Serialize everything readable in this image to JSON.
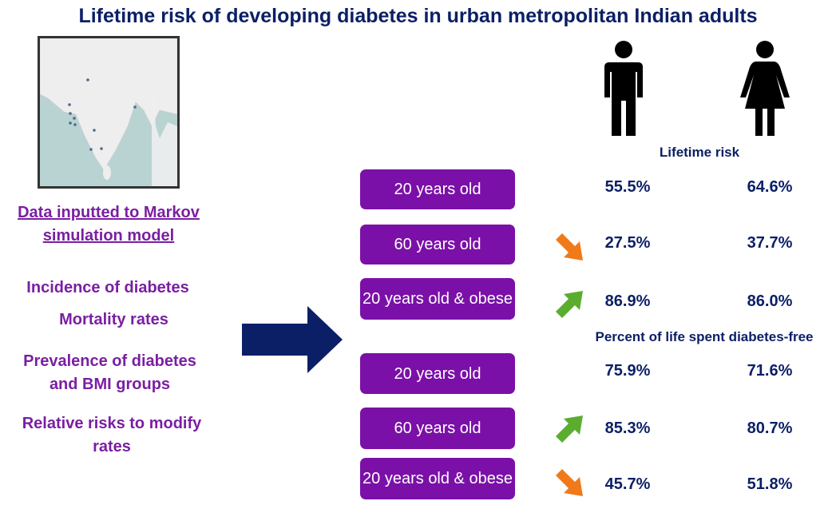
{
  "title": "Lifetime risk of developing diabetes in urban metropolitan Indian adults",
  "left": {
    "heading": "Data inputted to Markov simulation model",
    "inputs": [
      "Incidence of diabetes",
      "Mortality rates",
      "Prevalence of diabetes and BMI groups",
      "Relative risks to modify rates"
    ]
  },
  "icons": {
    "male": "man-icon",
    "female": "woman-icon",
    "arrow": "right-arrow-icon"
  },
  "headers": {
    "lifetime": "Lifetime risk",
    "diabetes_free": "Percent of life spent diabetes-free"
  },
  "rows": [
    {
      "label": "20 years old",
      "male": "55.5%",
      "female": "64.6%",
      "trend": ""
    },
    {
      "label": "60 years old",
      "male": "27.5%",
      "female": "37.7%",
      "trend": "down"
    },
    {
      "label": "20 years old & obese",
      "male": "86.9%",
      "female": "86.0%",
      "trend": "up"
    },
    {
      "label": "20 years old",
      "male": "75.9%",
      "female": "71.6%",
      "trend": ""
    },
    {
      "label": "60 years old",
      "male": "85.3%",
      "female": "80.7%",
      "trend": "up"
    },
    {
      "label": "20 years old & obese",
      "male": "45.7%",
      "female": "51.8%",
      "trend": "down"
    }
  ],
  "colors": {
    "navy": "#0b1f66",
    "purple": "#7b10a8",
    "up": "#5aad2e",
    "down": "#f07a1a"
  }
}
